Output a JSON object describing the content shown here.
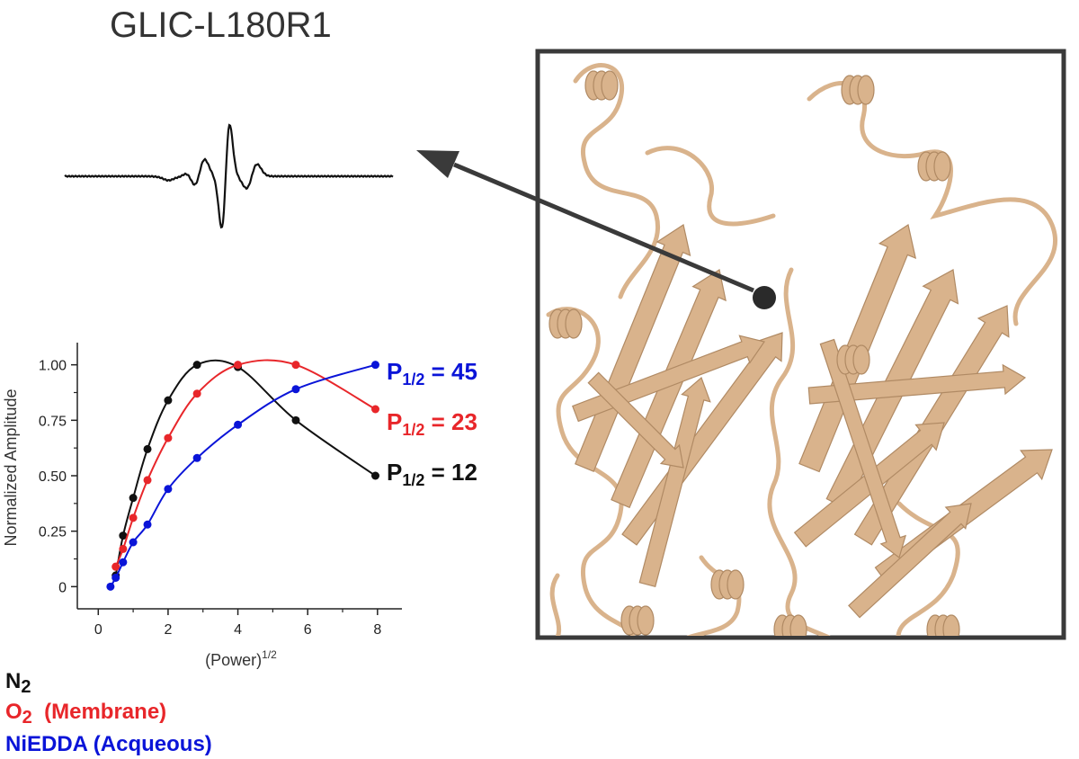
{
  "title": "GLIC-L180R1",
  "colors": {
    "n2": "#111111",
    "o2": "#e8262a",
    "niedda": "#0a14d8",
    "protein": "#d9b38c",
    "frame": "#3a3a3a"
  },
  "legend": {
    "n2": {
      "main": "N",
      "sub": "2",
      "rest": ""
    },
    "o2": {
      "main": "O",
      "sub": "2",
      "rest": "  (Membrane)"
    },
    "niedda": {
      "main": "NiEDDA (Acqueous)",
      "sub": "",
      "rest": ""
    }
  },
  "p_labels": {
    "niedda": {
      "p": "P",
      "sub": "1/2",
      "rest": " = 45"
    },
    "o2": {
      "p": "P",
      "sub": "1/2",
      "rest": " = 23"
    },
    "n2": {
      "p": "P",
      "sub": "1/2",
      "rest": " = 12"
    }
  },
  "chart_data": {
    "type": "scatter",
    "xlabel": "(Power)",
    "xlabel_sup": "1/2",
    "ylabel": "Normalized Amplitude",
    "xlim": [
      -0.6,
      8.7
    ],
    "ylim": [
      -0.1,
      1.1
    ],
    "xticks": [
      "0",
      "2",
      "4",
      "6",
      "8"
    ],
    "yticks": [
      "0",
      "0.25",
      "0.50",
      "0.75",
      "1.00"
    ],
    "series": [
      {
        "key": "n2",
        "x": [
          0.5,
          0.71,
          1.0,
          1.41,
          2.0,
          2.83,
          4.0,
          5.66,
          7.94
        ],
        "y": [
          0.05,
          0.23,
          0.4,
          0.62,
          0.84,
          1.0,
          0.99,
          0.75,
          0.5
        ],
        "p_half": 12
      },
      {
        "key": "o2",
        "x": [
          0.5,
          0.71,
          1.0,
          1.41,
          2.0,
          2.83,
          4.0,
          5.66,
          7.94
        ],
        "y": [
          0.09,
          0.17,
          0.31,
          0.48,
          0.67,
          0.87,
          1.0,
          1.0,
          0.8
        ],
        "p_half": 23
      },
      {
        "key": "niedda",
        "x": [
          0.35,
          0.5,
          0.71,
          1.0,
          1.41,
          2.0,
          2.83,
          4.0,
          5.66,
          7.94
        ],
        "y": [
          0.0,
          0.04,
          0.11,
          0.2,
          0.28,
          0.44,
          0.58,
          0.73,
          0.89,
          1.0
        ],
        "p_half": 45
      }
    ]
  }
}
